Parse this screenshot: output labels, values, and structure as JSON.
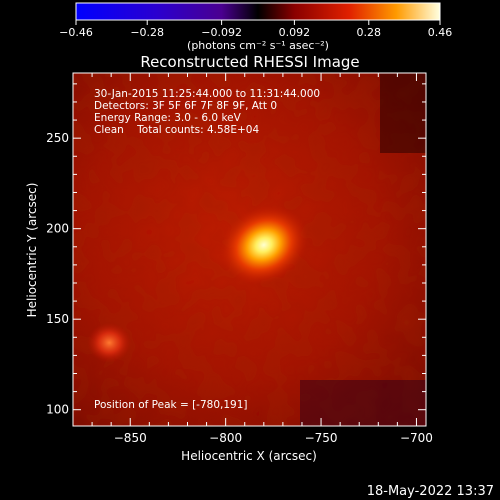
{
  "chart_data": {
    "type": "heatmap",
    "title": "Reconstructed RHESSI Image",
    "xlabel": "Heliocentric X (arcsec)",
    "ylabel": "Heliocentric Y (arcsec)",
    "xlim": [
      -880,
      -695
    ],
    "ylim": [
      91,
      286
    ],
    "x_ticks": [
      -850,
      -800,
      -750,
      -700
    ],
    "y_ticks": [
      100,
      150,
      200,
      250
    ],
    "colorbar": {
      "label": "(photons cm⁻² s⁻¹ asec⁻²)",
      "range": [
        -0.46,
        0.46
      ],
      "ticks": [
        -0.46,
        -0.28,
        -0.092,
        0.092,
        0.28,
        0.46
      ],
      "tick_labels": [
        "-0.46",
        "-0.28",
        "-0.092",
        "0.092",
        "0.28",
        "0.46"
      ]
    },
    "annotations": [
      "30-Jan-2015 11:25:44.000 to 11:31:44.000",
      "Detectors: 3F 5F 6F 7F 8F 9F, Att 0",
      "Energy Range: 3.0 - 6.0 keV",
      "Clean    Total counts: 4.58E+04"
    ],
    "peak_label": "Position of Peak = [-780,191]",
    "sources": [
      {
        "x": -780,
        "y": 191,
        "peak": 0.46
      },
      {
        "x": -861,
        "y": 137,
        "peak": 0.2
      }
    ]
  },
  "footer": {
    "timestamp": "18-May-2022 13:37"
  }
}
